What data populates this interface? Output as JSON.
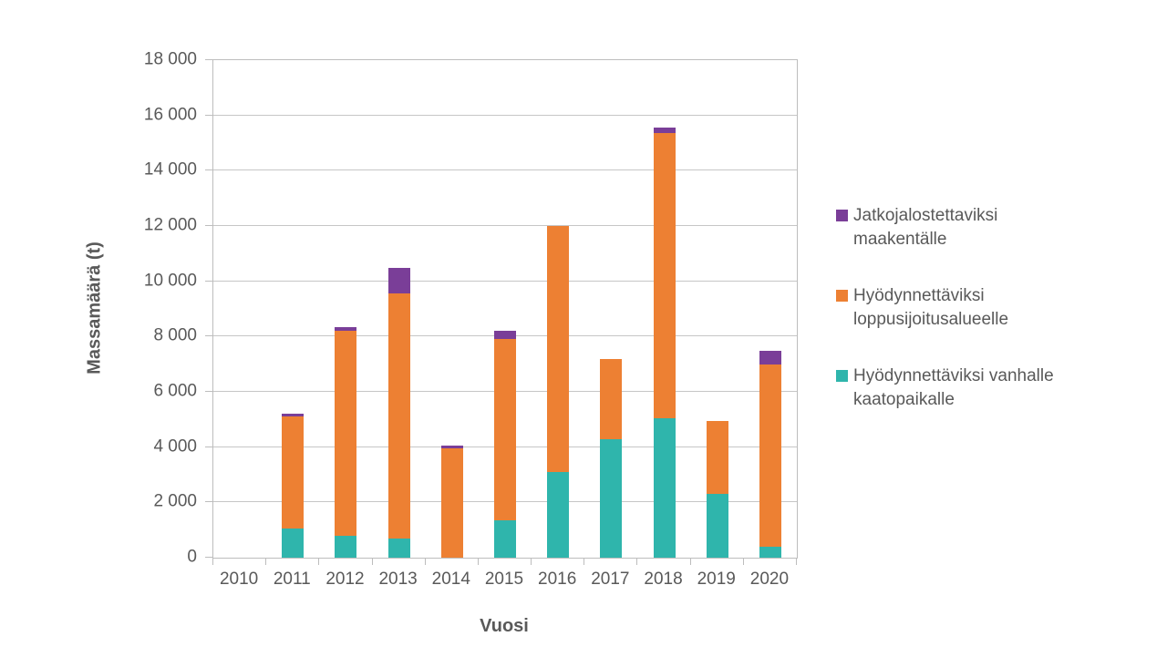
{
  "chart_data": {
    "type": "bar",
    "stacked": true,
    "title": "",
    "xlabel": "Vuosi",
    "ylabel": "Massamäärä (t)",
    "ylim": [
      0,
      18000
    ],
    "ytick_step": 2000,
    "ytick_labels": [
      "0",
      "2 000",
      "4 000",
      "6 000",
      "8 000",
      "10 000",
      "12 000",
      "14 000",
      "16 000",
      "18 000"
    ],
    "grid": true,
    "legend_position": "right",
    "categories": [
      "2010",
      "2011",
      "2012",
      "2013",
      "2014",
      "2015",
      "2016",
      "2017",
      "2018",
      "2019",
      "2020"
    ],
    "series": [
      {
        "name": "Hyödynnettäviksi vanhalle kaatopaikalle",
        "color": "#2fb5ac",
        "values": [
          0,
          1050,
          800,
          700,
          0,
          1350,
          3100,
          4300,
          5050,
          2300,
          400
        ]
      },
      {
        "name": "Hyödynnettäviksi loppusijoitusalueelle",
        "color": "#ed8033",
        "values": [
          0,
          4050,
          7400,
          8850,
          3950,
          6550,
          8900,
          2900,
          10300,
          2650,
          6600
        ]
      },
      {
        "name": "Jatkojalostettaviksi maakentälle",
        "color": "#7a3e98",
        "values": [
          0,
          100,
          150,
          950,
          100,
          300,
          0,
          0,
          200,
          0,
          500
        ]
      }
    ],
    "totals": [
      0,
      5200,
      8350,
      10500,
      4050,
      8200,
      12000,
      7200,
      15550,
      4950,
      7500
    ],
    "legend_items": [
      {
        "label": "Jatkojalostettaviksi maakentälle",
        "color": "#7a3e98"
      },
      {
        "label": "Hyödynnettäviksi loppusijoitusalueelle",
        "color": "#ed8033"
      },
      {
        "label": "Hyödynnettäviksi vanhalle kaatopaikalle",
        "color": "#2fb5ac"
      }
    ],
    "style": {
      "grid_color": "#c6c6c6",
      "axis_color": "#bdbdbd",
      "text_color": "#595959",
      "background": "#ffffff"
    }
  }
}
